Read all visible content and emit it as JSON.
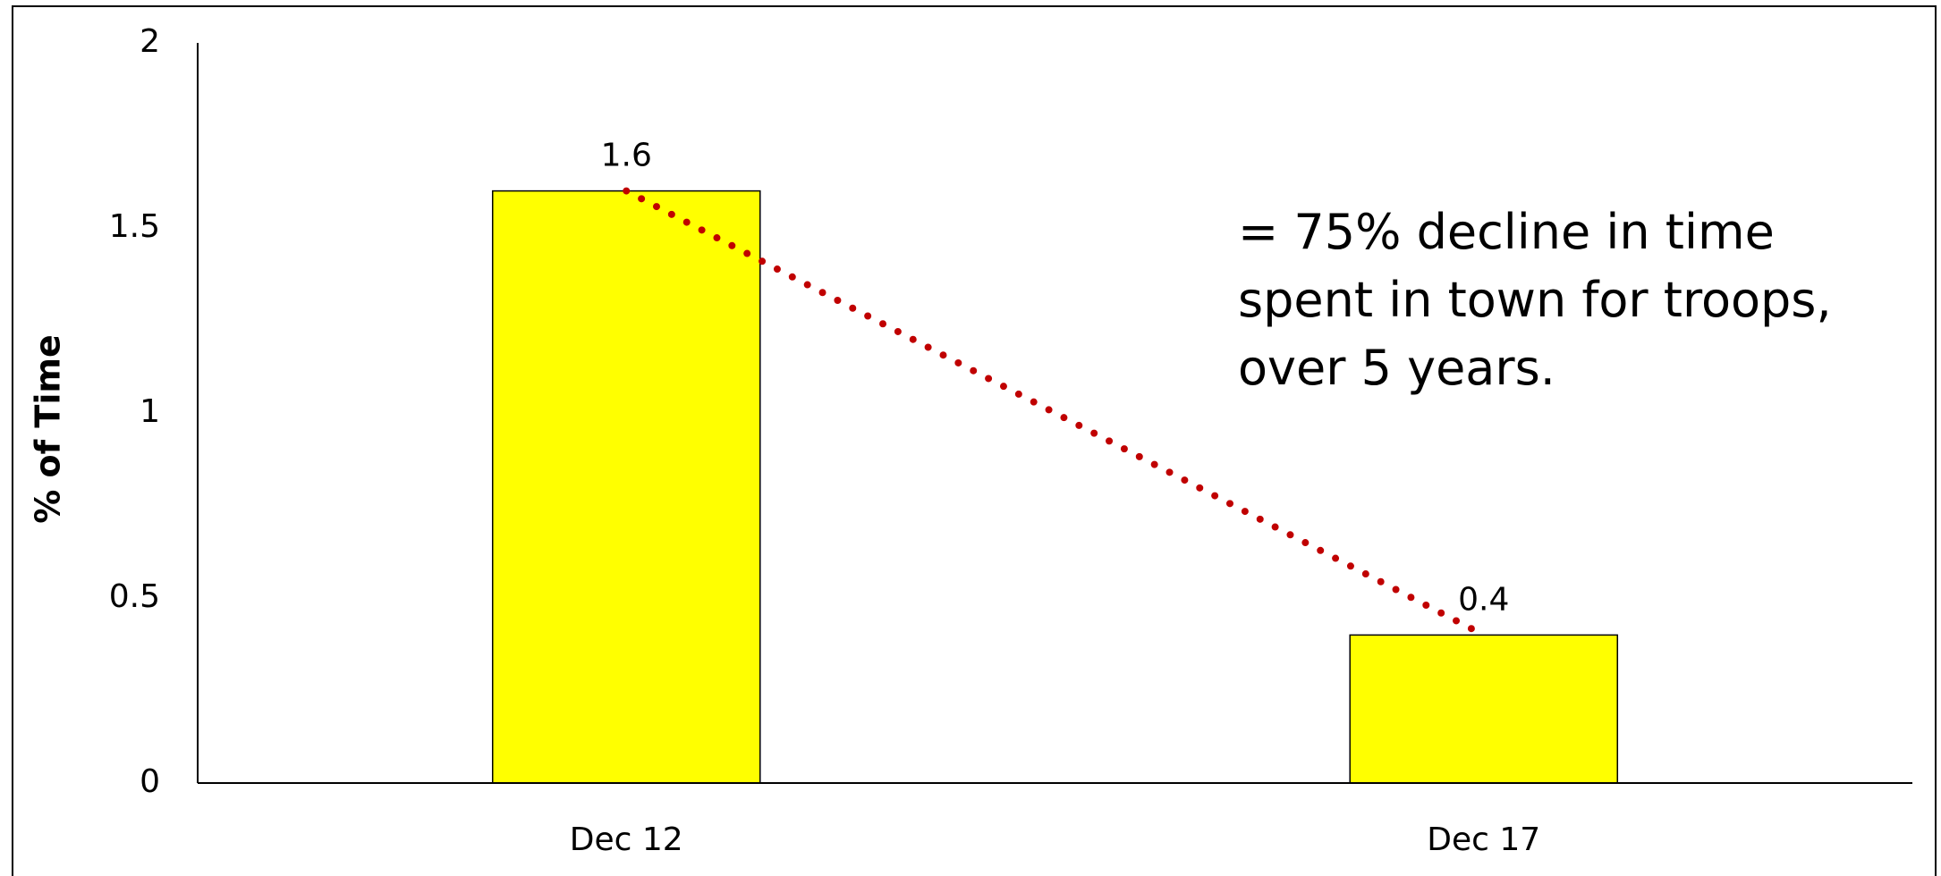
{
  "chart_data": {
    "type": "bar",
    "y_label": "% of Time",
    "annotation": "= 75% decline in time spent in town for troops, over 5 years.",
    "categories": [
      "Dec 12",
      "Dec 17"
    ],
    "values": [
      1.6,
      0.4
    ],
    "color": "#ffff00",
    "trendline_color": "#c00000",
    "ylim": [
      0,
      2
    ],
    "yticks": [
      0,
      0.5,
      1,
      1.5,
      2
    ],
    "grid": false
  }
}
